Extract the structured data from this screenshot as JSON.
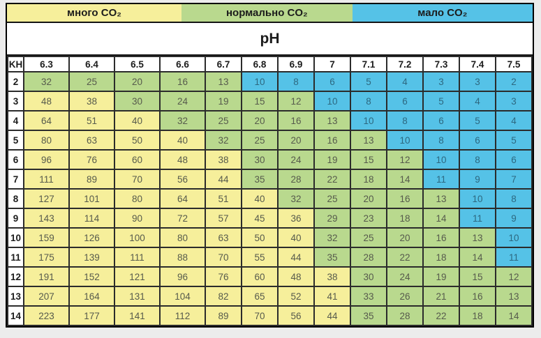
{
  "page": {
    "background": "#ECECEC"
  },
  "chart_data": {
    "type": "table",
    "title_bands": [
      {
        "label": "много CO₂",
        "zone": "high",
        "width_pct": 33.2
      },
      {
        "label": "нормально CO₂",
        "zone": "normal",
        "width_pct": 32.5
      },
      {
        "label": "мало CO₂",
        "zone": "low",
        "width_pct": 34.3
      }
    ],
    "axis_label": "pH",
    "corner_label": "KH",
    "ph_columns": [
      "6.3",
      "6.4",
      "6.5",
      "6.6",
      "6.7",
      "6.8",
      "6.9",
      "7",
      "7.1",
      "7.2",
      "7.3",
      "7.4",
      "7.5"
    ],
    "kh_rows": [
      "2",
      "3",
      "4",
      "5",
      "6",
      "7",
      "8",
      "9",
      "10",
      "11",
      "12",
      "13",
      "14"
    ],
    "co2_values": [
      [
        32,
        25,
        20,
        16,
        13,
        10,
        8,
        6,
        5,
        4,
        3,
        3,
        2
      ],
      [
        48,
        38,
        30,
        24,
        19,
        15,
        12,
        10,
        8,
        6,
        5,
        4,
        3
      ],
      [
        64,
        51,
        40,
        32,
        25,
        20,
        16,
        13,
        10,
        8,
        6,
        5,
        4
      ],
      [
        80,
        63,
        50,
        40,
        32,
        25,
        20,
        16,
        13,
        10,
        8,
        6,
        5
      ],
      [
        96,
        76,
        60,
        48,
        38,
        30,
        24,
        19,
        15,
        12,
        10,
        8,
        6
      ],
      [
        111,
        89,
        70,
        56,
        44,
        35,
        28,
        22,
        18,
        14,
        11,
        9,
        7
      ],
      [
        127,
        101,
        80,
        64,
        51,
        40,
        32,
        25,
        20,
        16,
        13,
        10,
        8
      ],
      [
        143,
        114,
        90,
        72,
        57,
        45,
        36,
        29,
        23,
        18,
        14,
        11,
        9
      ],
      [
        159,
        126,
        100,
        80,
        63,
        50,
        40,
        32,
        25,
        20,
        16,
        13,
        10
      ],
      [
        175,
        139,
        111,
        88,
        70,
        55,
        44,
        35,
        28,
        22,
        18,
        14,
        11
      ],
      [
        191,
        152,
        121,
        96,
        76,
        60,
        48,
        38,
        30,
        24,
        19,
        15,
        12
      ],
      [
        207,
        164,
        131,
        104,
        82,
        65,
        52,
        41,
        33,
        26,
        21,
        16,
        13
      ],
      [
        223,
        177,
        141,
        112,
        89,
        70,
        56,
        44,
        35,
        28,
        22,
        18,
        14
      ]
    ],
    "zone_rules": {
      "high_zone_min": 36,
      "low_zone_max": 11
    },
    "zone_colors": {
      "high": "#F6EF9B",
      "normal": "#B9D98E",
      "low": "#55C2E7"
    },
    "text_colors": {
      "header": "#1C1C1C",
      "cell": "#565A4C",
      "cell_low": "#2D6880"
    },
    "grid_color": "#2B2B2B"
  }
}
